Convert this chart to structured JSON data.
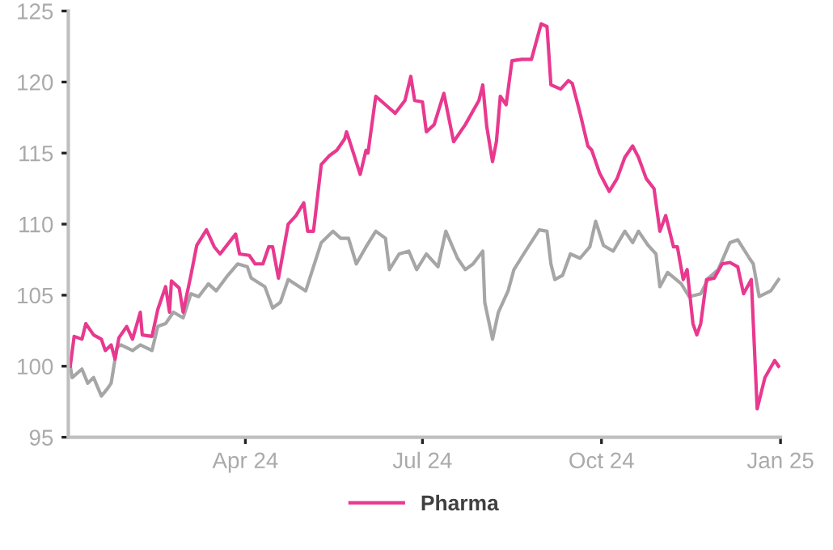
{
  "chart_data": {
    "type": "line",
    "xlim": [
      "2024-01-01",
      "2025-01-01"
    ],
    "ylim": [
      95,
      125
    ],
    "xticks": [
      {
        "value": "2024-04-01",
        "label": "Apr 24"
      },
      {
        "value": "2024-07-01",
        "label": "Jul 24"
      },
      {
        "value": "2024-10-01",
        "label": "Oct 24"
      },
      {
        "value": "2025-01-01",
        "label": "Jan 25"
      }
    ],
    "yticks": [
      95,
      100,
      105,
      110,
      115,
      120,
      125
    ],
    "grid": false,
    "legend": "bottom",
    "marker": "none",
    "line_style": "solid",
    "series": [
      {
        "color": "#a6a6a6",
        "x": [
          "2024-01-02",
          "2024-01-03",
          "2024-01-08",
          "2024-01-11",
          "2024-01-14",
          "2024-01-18",
          "2024-01-21",
          "2024-01-23",
          "2024-01-26",
          "2024-01-28",
          "2024-02-03",
          "2024-02-07",
          "2024-02-13",
          "2024-02-16",
          "2024-02-20",
          "2024-02-24",
          "2024-02-29",
          "2024-03-04",
          "2024-03-08",
          "2024-03-13",
          "2024-03-17",
          "2024-03-23",
          "2024-03-28",
          "2024-04-02",
          "2024-04-04",
          "2024-04-11",
          "2024-04-15",
          "2024-04-19",
          "2024-04-23",
          "2024-05-02",
          "2024-05-10",
          "2024-05-16",
          "2024-05-20",
          "2024-05-24",
          "2024-05-28",
          "2024-06-02",
          "2024-06-07",
          "2024-06-12",
          "2024-06-14",
          "2024-06-19",
          "2024-06-24",
          "2024-06-28",
          "2024-07-03",
          "2024-07-09",
          "2024-07-13",
          "2024-07-19",
          "2024-07-23",
          "2024-07-27",
          "2024-08-01",
          "2024-08-02",
          "2024-08-06",
          "2024-08-09",
          "2024-08-14",
          "2024-08-17",
          "2024-08-22",
          "2024-08-30",
          "2024-09-03",
          "2024-09-05",
          "2024-09-07",
          "2024-09-11",
          "2024-09-15",
          "2024-09-20",
          "2024-09-25",
          "2024-09-28",
          "2024-10-02",
          "2024-10-07",
          "2024-10-13",
          "2024-10-17",
          "2024-10-20",
          "2024-10-25",
          "2024-10-29",
          "2024-10-31",
          "2024-11-04",
          "2024-11-11",
          "2024-11-15",
          "2024-11-21",
          "2024-11-25",
          "2024-11-30",
          "2024-12-06",
          "2024-12-10",
          "2024-12-16",
          "2024-12-18",
          "2024-12-21",
          "2024-12-27",
          "2024-12-31"
        ],
        "values": [
          100,
          99.2,
          99.8,
          98.8,
          99.2,
          97.9,
          98.4,
          98.8,
          101.3,
          101.5,
          101.1,
          101.5,
          101.1,
          102.8,
          103,
          103.8,
          103.4,
          105.1,
          104.9,
          105.8,
          105.3,
          106.4,
          107.2,
          107,
          106.2,
          105.6,
          104.1,
          104.5,
          106.1,
          105.3,
          108.7,
          109.5,
          109,
          109,
          107.2,
          108.4,
          109.5,
          109,
          106.8,
          107.9,
          108.1,
          106.8,
          107.9,
          107,
          109.5,
          107.6,
          106.8,
          107.2,
          108.1,
          104.5,
          101.9,
          103.8,
          105.3,
          106.8,
          107.9,
          109.6,
          109.5,
          107.2,
          106.1,
          106.4,
          107.9,
          107.6,
          108.4,
          110.2,
          108.5,
          108.1,
          109.5,
          108.7,
          109.5,
          108.5,
          107.9,
          105.6,
          106.6,
          105.8,
          104.9,
          105.1,
          106.2,
          106.8,
          108.7,
          108.9,
          107.6,
          107.2,
          104.9,
          105.3,
          106.1
        ]
      },
      {
        "name": "Pharma",
        "color": "#e8398f",
        "x": [
          "2024-01-02",
          "2024-01-04",
          "2024-01-08",
          "2024-01-10",
          "2024-01-14",
          "2024-01-18",
          "2024-01-20",
          "2024-01-23",
          "2024-01-25",
          "2024-01-27",
          "2024-01-31",
          "2024-02-03",
          "2024-02-07",
          "2024-02-08",
          "2024-02-13",
          "2024-02-16",
          "2024-02-20",
          "2024-02-22",
          "2024-02-23",
          "2024-02-27",
          "2024-02-29",
          "2024-03-04",
          "2024-03-07",
          "2024-03-12",
          "2024-03-16",
          "2024-03-19",
          "2024-03-27",
          "2024-03-29",
          "2024-04-03",
          "2024-04-06",
          "2024-04-10",
          "2024-04-13",
          "2024-04-15",
          "2024-04-18",
          "2024-04-23",
          "2024-04-27",
          "2024-05-01",
          "2024-05-03",
          "2024-05-06",
          "2024-05-10",
          "2024-05-14",
          "2024-05-18",
          "2024-05-22",
          "2024-05-23",
          "2024-05-27",
          "2024-05-30",
          "2024-06-02",
          "2024-06-03",
          "2024-06-07",
          "2024-06-12",
          "2024-06-17",
          "2024-06-22",
          "2024-06-25",
          "2024-06-27",
          "2024-07-01",
          "2024-07-03",
          "2024-07-07",
          "2024-07-12",
          "2024-07-17",
          "2024-07-23",
          "2024-07-30",
          "2024-08-01",
          "2024-08-03",
          "2024-08-06",
          "2024-08-08",
          "2024-08-10",
          "2024-08-13",
          "2024-08-16",
          "2024-08-21",
          "2024-08-26",
          "2024-08-31",
          "2024-09-03",
          "2024-09-05",
          "2024-09-10",
          "2024-09-14",
          "2024-09-16",
          "2024-09-20",
          "2024-09-24",
          "2024-09-26",
          "2024-09-30",
          "2024-10-05",
          "2024-10-09",
          "2024-10-13",
          "2024-10-17",
          "2024-10-20",
          "2024-10-24",
          "2024-10-28",
          "2024-10-31",
          "2024-11-03",
          "2024-11-07",
          "2024-11-09",
          "2024-11-12",
          "2024-11-14",
          "2024-11-17",
          "2024-11-19",
          "2024-11-21",
          "2024-11-24",
          "2024-11-28",
          "2024-12-02",
          "2024-12-06",
          "2024-12-10",
          "2024-12-13",
          "2024-12-17",
          "2024-12-20",
          "2024-12-24",
          "2024-12-29",
          "2024-12-31"
        ],
        "values": [
          100,
          102.1,
          101.9,
          103,
          102.2,
          101.9,
          101.1,
          101.5,
          100.5,
          102,
          102.8,
          101.9,
          103.8,
          102.2,
          102.1,
          104,
          105.6,
          103.8,
          106,
          105.5,
          103.8,
          106.4,
          108.5,
          109.6,
          108.4,
          107.9,
          109.3,
          107.9,
          107.8,
          107.2,
          107.2,
          108.4,
          108.4,
          106.2,
          110,
          110.6,
          111.5,
          109.5,
          109.5,
          114.2,
          114.8,
          115.2,
          116,
          116.5,
          114.8,
          113.5,
          115.2,
          115,
          119,
          118.4,
          117.8,
          118.7,
          120.4,
          118.7,
          118.6,
          116.5,
          117,
          119.2,
          115.8,
          117,
          118.7,
          119.8,
          116.9,
          114.4,
          115.8,
          119,
          118.4,
          121.5,
          121.6,
          121.6,
          124.1,
          123.9,
          119.8,
          119.5,
          120.1,
          119.9,
          117.8,
          115.5,
          115.2,
          113.6,
          112.3,
          113.2,
          114.7,
          115.5,
          114.7,
          113.2,
          112.5,
          109.5,
          110.6,
          108.4,
          108.4,
          106.1,
          106.8,
          103,
          102.2,
          103,
          106.1,
          106.2,
          107.2,
          107.3,
          107,
          105.1,
          106.1,
          97,
          99.2,
          100.4,
          100
        ]
      }
    ]
  }
}
